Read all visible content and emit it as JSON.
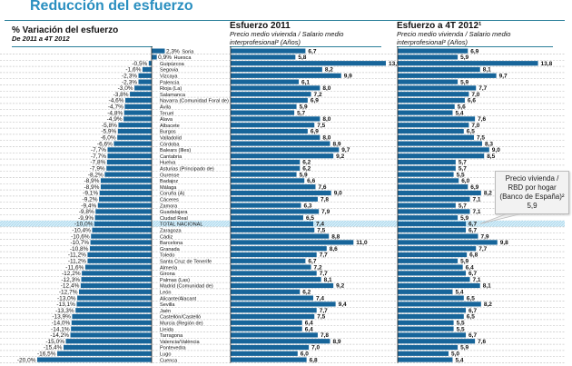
{
  "title": "Reducción del esfuerzo",
  "colors": {
    "bar": "#17659a",
    "title": "#2a8fc0",
    "total_highlight": "#cfeaf6"
  },
  "chart_data": [
    {
      "type": "bar",
      "orientation": "horizontal",
      "title": "% Variación del esfuerzo",
      "subtitle": "De 2011 a 4T 2012",
      "unit": "%",
      "categories": [
        "Soria",
        "Huesca",
        "Guipúzcoa",
        "Segovia",
        "Vizcaya",
        "Palencia",
        "Rioja (La)",
        "Salamanca",
        "Navarra (Comunidad Foral de)",
        "Ávila",
        "Teruel",
        "Álava",
        "Albacete",
        "Burgos",
        "Valladolid",
        "Córdoba",
        "Balears (Illes)",
        "Cantabria",
        "Huelva",
        "Asturias (Principado de)",
        "Ourense",
        "Badajoz",
        "Málaga",
        "Coruña (A)",
        "Cáceres",
        "Zamora",
        "Guadalajara",
        "Ciudad Real",
        "TOTAL NACIONAL",
        "Zaragoza",
        "Cádiz",
        "Barcelona",
        "Granada",
        "Toledo",
        "Santa Cruz de Tenerife",
        "Almería",
        "Girona",
        "Palmas (Las)",
        "Madrid (Comunidad de)",
        "León",
        "Alicante/Alacant",
        "Sevilla",
        "Jaén",
        "Castellón/Castelló",
        "Murcia (Región de)",
        "Lleida",
        "Tarragona",
        "Valencia/València",
        "Pontevedra",
        "Lugo",
        "Cuenca"
      ],
      "labels": [
        "2,3%",
        "0,9%",
        "-0,5%",
        "-1,6%",
        "-2,3%",
        "-2,3%",
        "-3,0%",
        "-3,8%",
        "-4,6%",
        "-4,7%",
        "-4,8%",
        "-4,9%",
        "-5,8%",
        "-5,9%",
        "-6,0%",
        "-6,6%",
        "-7,7%",
        "-7,7%",
        "-7,8%",
        "-7,9%",
        "-8,2%",
        "-8,9%",
        "-8,9%",
        "-9,1%",
        "-9,2%",
        "-9,4%",
        "-9,8%",
        "-9,9%",
        "-10,0%",
        "-10,4%",
        "-10,6%",
        "-10,7%",
        "-10,8%",
        "-11,2%",
        "-11,2%",
        "-11,6%",
        "-12,2%",
        "-12,3%",
        "-12,4%",
        "-12,7%",
        "-13,0%",
        "-13,1%",
        "-13,3%",
        "-13,9%",
        "-14,0%",
        "-14,1%",
        "-14,2%",
        "-15,0%",
        "-15,4%",
        "-16,5%",
        "-20,0%"
      ],
      "values": [
        2.3,
        0.9,
        -0.5,
        -1.6,
        -2.3,
        -2.3,
        -3.0,
        -3.8,
        -4.6,
        -4.7,
        -4.8,
        -4.9,
        -5.8,
        -5.9,
        -6.0,
        -6.6,
        -7.7,
        -7.7,
        -7.8,
        -7.9,
        -8.2,
        -8.9,
        -8.9,
        -9.1,
        -9.2,
        -9.4,
        -9.8,
        -9.9,
        -10.0,
        -10.4,
        -10.6,
        -10.7,
        -10.8,
        -11.2,
        -11.2,
        -11.6,
        -12.2,
        -12.3,
        -12.4,
        -12.7,
        -13.0,
        -13.1,
        -13.3,
        -13.9,
        -14.0,
        -14.1,
        -14.2,
        -15.0,
        -15.4,
        -16.5,
        -20.0
      ]
    },
    {
      "type": "bar",
      "orientation": "horizontal",
      "title": "Esfuerzo 2011",
      "subtitle": "Precio medio vivienda / Salario medio interprofesional² (Años)",
      "labels": [
        "6,7",
        "5,8",
        "13,9",
        "8,2",
        "9,9",
        "6,1",
        "8,0",
        "7,2",
        "6,9",
        "5,9",
        "5,7",
        "8,0",
        "7,5",
        "6,9",
        "8,0",
        "8,9",
        "9,7",
        "9,2",
        "6,2",
        "6,2",
        "5,9",
        "6,6",
        "7,6",
        "9,0",
        "7,8",
        "6,3",
        "7,9",
        "6,5",
        "7,4",
        "7,5",
        "8,8",
        "11,0",
        "8,6",
        "7,7",
        "6,7",
        "7,2",
        "7,7",
        "8,1",
        "9,2",
        "6,2",
        "7,4",
        "9,4",
        "7,7",
        "7,5",
        "6,4",
        "6,4",
        "7,8",
        "8,9",
        "7,0",
        "6,0",
        "6,8"
      ],
      "values": [
        6.7,
        5.8,
        13.9,
        8.2,
        9.9,
        6.1,
        8.0,
        7.2,
        6.9,
        5.9,
        5.7,
        8.0,
        7.5,
        6.9,
        8.0,
        8.9,
        9.7,
        9.2,
        6.2,
        6.2,
        5.9,
        6.6,
        7.6,
        9.0,
        7.8,
        6.3,
        7.9,
        6.5,
        7.4,
        7.5,
        8.8,
        11.0,
        8.6,
        7.7,
        6.7,
        7.2,
        7.7,
        8.1,
        9.2,
        6.2,
        7.4,
        9.4,
        7.7,
        7.5,
        6.4,
        6.4,
        7.8,
        8.9,
        7.0,
        6.0,
        6.8
      ]
    },
    {
      "type": "bar",
      "orientation": "horizontal",
      "title": "Esfuerzo a 4T 2012¹",
      "subtitle": "Precio medio vivienda / Salario medio interprofesional² (Años)",
      "labels": [
        "6,9",
        "5,9",
        "13,8",
        "8,1",
        "9,7",
        "5,9",
        "7,7",
        "7,0",
        "6,6",
        "5,6",
        "5,4",
        "7,6",
        "7,0",
        "6,5",
        "7,5",
        "8,3",
        "9,0",
        "8,5",
        "5,7",
        "5,7",
        "5,5",
        "6,0",
        "6,9",
        "8,2",
        "7,1",
        "5,7",
        "7,1",
        "5,9",
        "6,7",
        "6,7",
        "7,9",
        "9,8",
        "7,7",
        "6,8",
        "5,9",
        "6,4",
        "6,7",
        "7,1",
        "8,1",
        "5,4",
        "6,5",
        "8,2",
        "6,7",
        "6,5",
        "5,5",
        "5,5",
        "6,7",
        "7,6",
        "5,9",
        "5,0",
        "5,4"
      ],
      "values": [
        6.9,
        5.9,
        13.8,
        8.1,
        9.7,
        5.9,
        7.7,
        7.0,
        6.6,
        5.6,
        5.4,
        7.6,
        7.0,
        6.5,
        7.5,
        8.3,
        9.0,
        8.5,
        5.7,
        5.7,
        5.5,
        6.0,
        6.9,
        8.2,
        7.1,
        5.7,
        7.1,
        5.9,
        6.7,
        6.7,
        7.9,
        9.8,
        7.7,
        6.8,
        5.9,
        6.4,
        6.7,
        7.1,
        8.1,
        5.4,
        6.5,
        8.2,
        6.7,
        6.5,
        5.5,
        5.5,
        6.7,
        7.6,
        5.9,
        5.0,
        5.4
      ],
      "annotation": {
        "line1": "Precio vivienda /",
        "line2": "RBD por hogar",
        "line3": "(Banco de España)²",
        "value": "5,9"
      }
    }
  ]
}
